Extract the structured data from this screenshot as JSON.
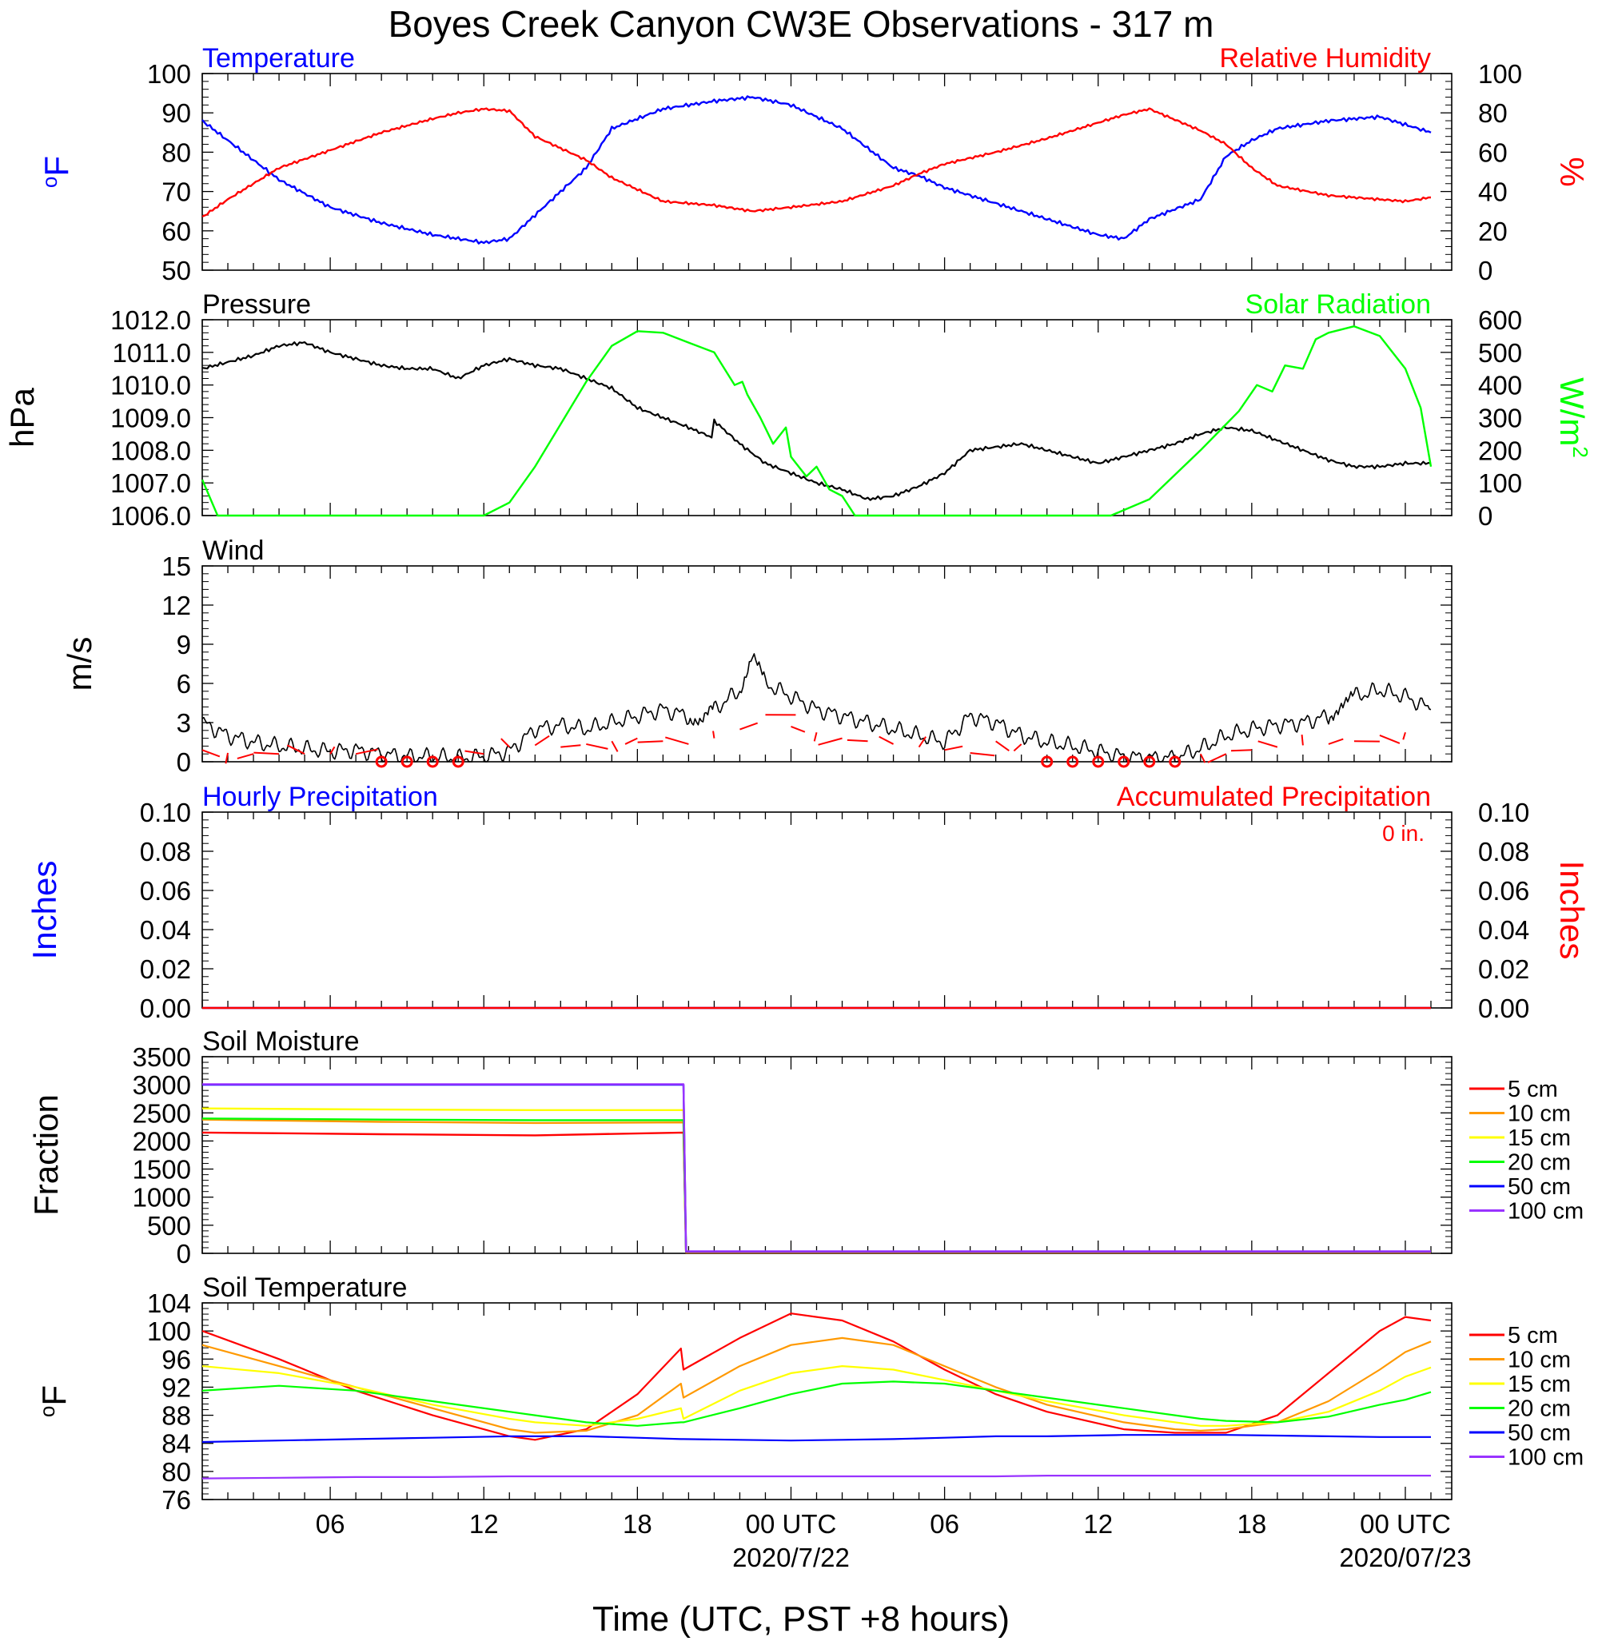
{
  "figure": {
    "title": "Boyes Creek Canyon CW3E Observations - 317 m",
    "xlabel": "Time (UTC, PST +8 hours)",
    "x_ticks": [
      "06",
      "12",
      "18",
      "00 UTC",
      "06",
      "12",
      "18",
      "00 UTC"
    ],
    "x_tick_hours": [
      6,
      12,
      18,
      24,
      30,
      36,
      42,
      48
    ],
    "date_labels": [
      "2020/7/22",
      "2020/07/23"
    ],
    "date_label_hours": [
      24,
      48
    ],
    "x_range_hours": [
      1,
      49
    ]
  },
  "colors": {
    "temperature": "#0000ff",
    "humidity": "#ff0000",
    "pressure": "#000000",
    "solar": "#00ff00",
    "wind": "#000000",
    "barb": "#ff0000",
    "hourly_precip": "#0000ff",
    "accum_precip": "#ff0000",
    "d5": "#ff0000",
    "d10": "#ff9900",
    "d15": "#ffff00",
    "d20": "#00ff00",
    "d50": "#0000ff",
    "d100": "#9933ff"
  },
  "panels": {
    "temp_rh": {
      "left_title": "Temperature",
      "right_title": "Relative Humidity",
      "left_unit": "oF",
      "right_unit": "%",
      "left_ticks": [
        "100",
        "90",
        "80",
        "70",
        "60",
        "50"
      ],
      "right_ticks": [
        "100",
        "80",
        "60",
        "40",
        "20",
        "0"
      ]
    },
    "pressure_solar": {
      "left_title": "Pressure",
      "right_title": "Solar Radiation",
      "left_unit": "hPa",
      "right_unit": "W/m2",
      "left_ticks": [
        "1012.0",
        "1011.0",
        "1010.0",
        "1009.0",
        "1008.0",
        "1007.0",
        "1006.0"
      ],
      "right_ticks": [
        "600",
        "500",
        "400",
        "300",
        "200",
        "100",
        "0"
      ]
    },
    "wind": {
      "left_title": "Wind",
      "left_unit": "m/s",
      "left_ticks": [
        "15",
        "12",
        "9",
        "6",
        "3",
        "0"
      ]
    },
    "precip": {
      "left_title": "Hourly Precipitation",
      "right_title": "Accumulated Precipitation",
      "accum_label": "0 in.",
      "left_unit": "Inches",
      "right_unit": "Inches",
      "left_ticks": [
        "0.10",
        "0.08",
        "0.06",
        "0.04",
        "0.02",
        "0.00"
      ],
      "right_ticks": [
        "0.10",
        "0.08",
        "0.06",
        "0.04",
        "0.02",
        "0.00"
      ]
    },
    "soil_moisture": {
      "left_title": "Soil Moisture",
      "left_unit": "Fraction",
      "left_ticks": [
        "3500",
        "3000",
        "2500",
        "2000",
        "1500",
        "1000",
        "500",
        "0"
      ]
    },
    "soil_temp": {
      "left_title": "Soil Temperature",
      "left_unit": "oF",
      "left_ticks": [
        "104",
        "100",
        "96",
        "92",
        "88",
        "84",
        "80",
        "76"
      ]
    }
  },
  "legend": {
    "items": [
      "5 cm",
      "10 cm",
      "15 cm",
      "20 cm",
      "50 cm",
      "100 cm"
    ],
    "colors": [
      "#ff0000",
      "#ff9900",
      "#ffff00",
      "#00ff00",
      "#0000ff",
      "#9933ff"
    ]
  },
  "chart_data": [
    {
      "type": "line",
      "title": "Temperature / Relative Humidity",
      "x_unit": "hours UTC from 2020-07-21 00Z",
      "x": [
        1,
        2,
        4,
        6,
        8,
        10,
        11,
        12,
        13,
        14,
        16,
        17,
        19,
        21,
        22.5,
        24,
        26,
        28,
        29,
        30,
        32,
        34,
        36,
        37,
        38,
        40,
        41,
        42,
        43,
        45,
        47,
        48,
        49
      ],
      "series": [
        {
          "name": "Temperature",
          "axis": "left",
          "ylim": [
            50,
            100
          ],
          "values": [
            88,
            83,
            73,
            66,
            62,
            59,
            58,
            57,
            58,
            64,
            76,
            86,
            91,
            93,
            94,
            92,
            86,
            76,
            74,
            71,
            67,
            63,
            59,
            58,
            63,
            68,
            79,
            83,
            86,
            88,
            89,
            87,
            85
          ]
        },
        {
          "name": "Relative Humidity",
          "axis": "right",
          "ylim": [
            0,
            100
          ],
          "values": [
            27,
            36,
            52,
            61,
            70,
            77,
            80,
            82,
            81,
            68,
            56,
            47,
            35,
            33,
            30,
            32,
            35,
            43,
            49,
            54,
            60,
            67,
            75,
            79,
            82,
            71,
            64,
            52,
            43,
            38,
            36,
            35,
            37
          ]
        }
      ]
    },
    {
      "type": "line",
      "title": "Pressure / Solar Radiation",
      "series": [
        {
          "name": "Pressure",
          "axis": "left",
          "ylim": [
            1006,
            1012
          ],
          "x": [
            1,
            2,
            3,
            4,
            5,
            6,
            7,
            8,
            9,
            10,
            11,
            12,
            13,
            14,
            15,
            16,
            17,
            18,
            19,
            20,
            20.9,
            21,
            22,
            23,
            24,
            25,
            26,
            27,
            28,
            29,
            30,
            31,
            32,
            33,
            34,
            35,
            36,
            37,
            38,
            39,
            40,
            41,
            42,
            43,
            44,
            45,
            46,
            47,
            48,
            49
          ],
          "values": [
            1010.5,
            1010.7,
            1010.9,
            1011.2,
            1011.3,
            1011.0,
            1010.8,
            1010.6,
            1010.5,
            1010.5,
            1010.2,
            1010.6,
            1010.8,
            1010.6,
            1010.5,
            1010.2,
            1009.9,
            1009.3,
            1009.0,
            1008.7,
            1008.4,
            1008.9,
            1008.2,
            1007.6,
            1007.3,
            1007.0,
            1006.8,
            1006.5,
            1006.6,
            1006.9,
            1007.3,
            1008.0,
            1008.1,
            1008.2,
            1008.0,
            1007.8,
            1007.6,
            1007.8,
            1008.0,
            1008.2,
            1008.5,
            1008.7,
            1008.6,
            1008.3,
            1008.0,
            1007.7,
            1007.5,
            1007.5,
            1007.6,
            1007.6
          ]
        },
        {
          "name": "Solar Radiation",
          "axis": "right",
          "ylim": [
            0,
            600
          ],
          "x": [
            1,
            1.6,
            12,
            13,
            14,
            15,
            16,
            17,
            18,
            19,
            20,
            21,
            21.8,
            22.1,
            22.3,
            22.8,
            23.3,
            23.8,
            24,
            24.2,
            24.6,
            25,
            25.5,
            26,
            26.5,
            36.5,
            38,
            40,
            41.5,
            42.2,
            42.8,
            43.3,
            44,
            44.5,
            45,
            46,
            47,
            48,
            48.6,
            49
          ],
          "values": [
            110,
            0,
            0,
            40,
            150,
            280,
            410,
            520,
            565,
            560,
            530,
            500,
            400,
            410,
            370,
            300,
            220,
            270,
            180,
            160,
            120,
            150,
            80,
            60,
            0,
            0,
            50,
            200,
            320,
            400,
            380,
            460,
            450,
            540,
            560,
            580,
            550,
            450,
            330,
            150
          ]
        }
      ]
    },
    {
      "type": "line",
      "title": "Wind",
      "ylim": [
        0,
        15
      ],
      "x": [
        1,
        2,
        3,
        4,
        5,
        6,
        7,
        8,
        9,
        10,
        11,
        12,
        13,
        14,
        15,
        16,
        17,
        18,
        19,
        20,
        20.5,
        21,
        22,
        22.5,
        23,
        24,
        25,
        26,
        27,
        28,
        29,
        30,
        31,
        32,
        33,
        34,
        35,
        36,
        37,
        38,
        39,
        40,
        41,
        42,
        43,
        44,
        45,
        45.5,
        46,
        47,
        48,
        49
      ],
      "series": [
        {
          "name": "Wind Speed",
          "values": [
            3,
            2,
            1.5,
            1.2,
            1,
            0.8,
            0.9,
            0.6,
            0.4,
            0.4,
            0.3,
            0.4,
            0.8,
            2.5,
            2.8,
            2.5,
            3,
            3.5,
            4,
            3.5,
            3,
            4,
            5.5,
            8,
            6,
            5,
            4,
            3.5,
            3,
            2.5,
            2,
            1.5,
            3.5,
            3,
            2,
            1.5,
            1.2,
            0.8,
            0.4,
            0.3,
            0.3,
            1,
            2,
            2.5,
            2.8,
            3,
            3.5,
            4.5,
            5,
            5.5,
            5,
            4
          ]
        }
      ],
      "calm_hours": [
        8,
        9,
        10,
        11,
        34,
        35,
        36,
        37,
        38,
        39
      ]
    },
    {
      "type": "line",
      "title": "Precipitation",
      "ylim": [
        0,
        0.1
      ],
      "x": [
        1,
        49
      ],
      "series": [
        {
          "name": "Hourly Precipitation",
          "values": [
            0,
            0
          ]
        },
        {
          "name": "Accumulated Precipitation",
          "values": [
            0,
            0
          ]
        }
      ]
    },
    {
      "type": "line",
      "title": "Soil Moisture",
      "ylim": [
        0,
        3500
      ],
      "x": [
        1,
        8,
        14,
        19.8,
        19.9,
        49
      ],
      "series": [
        {
          "name": "5 cm",
          "values": [
            2150,
            2120,
            2100,
            2150,
            15,
            15
          ]
        },
        {
          "name": "10 cm",
          "values": [
            2380,
            2340,
            2320,
            2330,
            20,
            20
          ]
        },
        {
          "name": "15 cm",
          "values": [
            2580,
            2560,
            2550,
            2550,
            25,
            25
          ]
        },
        {
          "name": "20 cm",
          "values": [
            2400,
            2380,
            2370,
            2370,
            30,
            30
          ]
        },
        {
          "name": "50 cm",
          "values": [
            3000,
            3000,
            3000,
            3000,
            30,
            30
          ]
        },
        {
          "name": "100 cm",
          "values": [
            3010,
            3010,
            3010,
            3010,
            35,
            35
          ]
        }
      ]
    },
    {
      "type": "line",
      "title": "Soil Temperature",
      "ylim": [
        76,
        104
      ],
      "x": [
        1,
        4,
        7,
        10,
        13,
        14,
        16,
        18,
        19.7,
        19.8,
        22,
        24,
        26,
        28,
        30,
        32,
        34,
        37,
        39,
        40,
        41,
        43,
        45,
        47,
        48,
        49
      ],
      "series": [
        {
          "name": "5 cm",
          "values": [
            100,
            96,
            91.5,
            88,
            85,
            84.5,
            86,
            91,
            97.5,
            94.5,
            99,
            102.5,
            101.5,
            98.5,
            94.5,
            91,
            88.5,
            86,
            85.5,
            85.5,
            85.5,
            88,
            94,
            100,
            102,
            101.5
          ]
        },
        {
          "name": "10 cm",
          "values": [
            98,
            95,
            92,
            89,
            86,
            85.5,
            85.8,
            88,
            92.5,
            90.5,
            95,
            98,
            99,
            98,
            95,
            92,
            89.5,
            87,
            86,
            85.8,
            86,
            87,
            90,
            94.5,
            97,
            98.5
          ]
        },
        {
          "name": "15 cm",
          "values": [
            95,
            94,
            92,
            89.5,
            87.5,
            87,
            86.5,
            87.5,
            89,
            87.5,
            91.5,
            94,
            95,
            94.5,
            93,
            91.5,
            90,
            88,
            87,
            86.5,
            86.5,
            87,
            88.5,
            91.5,
            93.5,
            94.8
          ]
        },
        {
          "name": "20 cm",
          "values": [
            91.5,
            92.2,
            91.5,
            90,
            88.5,
            88,
            87,
            86.5,
            87,
            87,
            89,
            91,
            92.5,
            92.8,
            92.5,
            91.5,
            90.5,
            89,
            88,
            87.5,
            87.2,
            87,
            87.8,
            89.5,
            90.2,
            91.3
          ]
        },
        {
          "name": "50 cm",
          "values": [
            84.2,
            84.4,
            84.6,
            84.8,
            85.0,
            85.0,
            85.0,
            84.8,
            84.6,
            84.6,
            84.5,
            84.4,
            84.5,
            84.6,
            84.8,
            85.0,
            85.0,
            85.2,
            85.2,
            85.2,
            85.2,
            85.1,
            85.0,
            84.9,
            84.9,
            84.9
          ]
        },
        {
          "name": "100 cm",
          "values": [
            79.0,
            79.1,
            79.2,
            79.2,
            79.3,
            79.3,
            79.3,
            79.3,
            79.3,
            79.3,
            79.3,
            79.3,
            79.3,
            79.3,
            79.3,
            79.3,
            79.4,
            79.4,
            79.4,
            79.4,
            79.4,
            79.4,
            79.4,
            79.4,
            79.4,
            79.4
          ]
        }
      ]
    }
  ]
}
